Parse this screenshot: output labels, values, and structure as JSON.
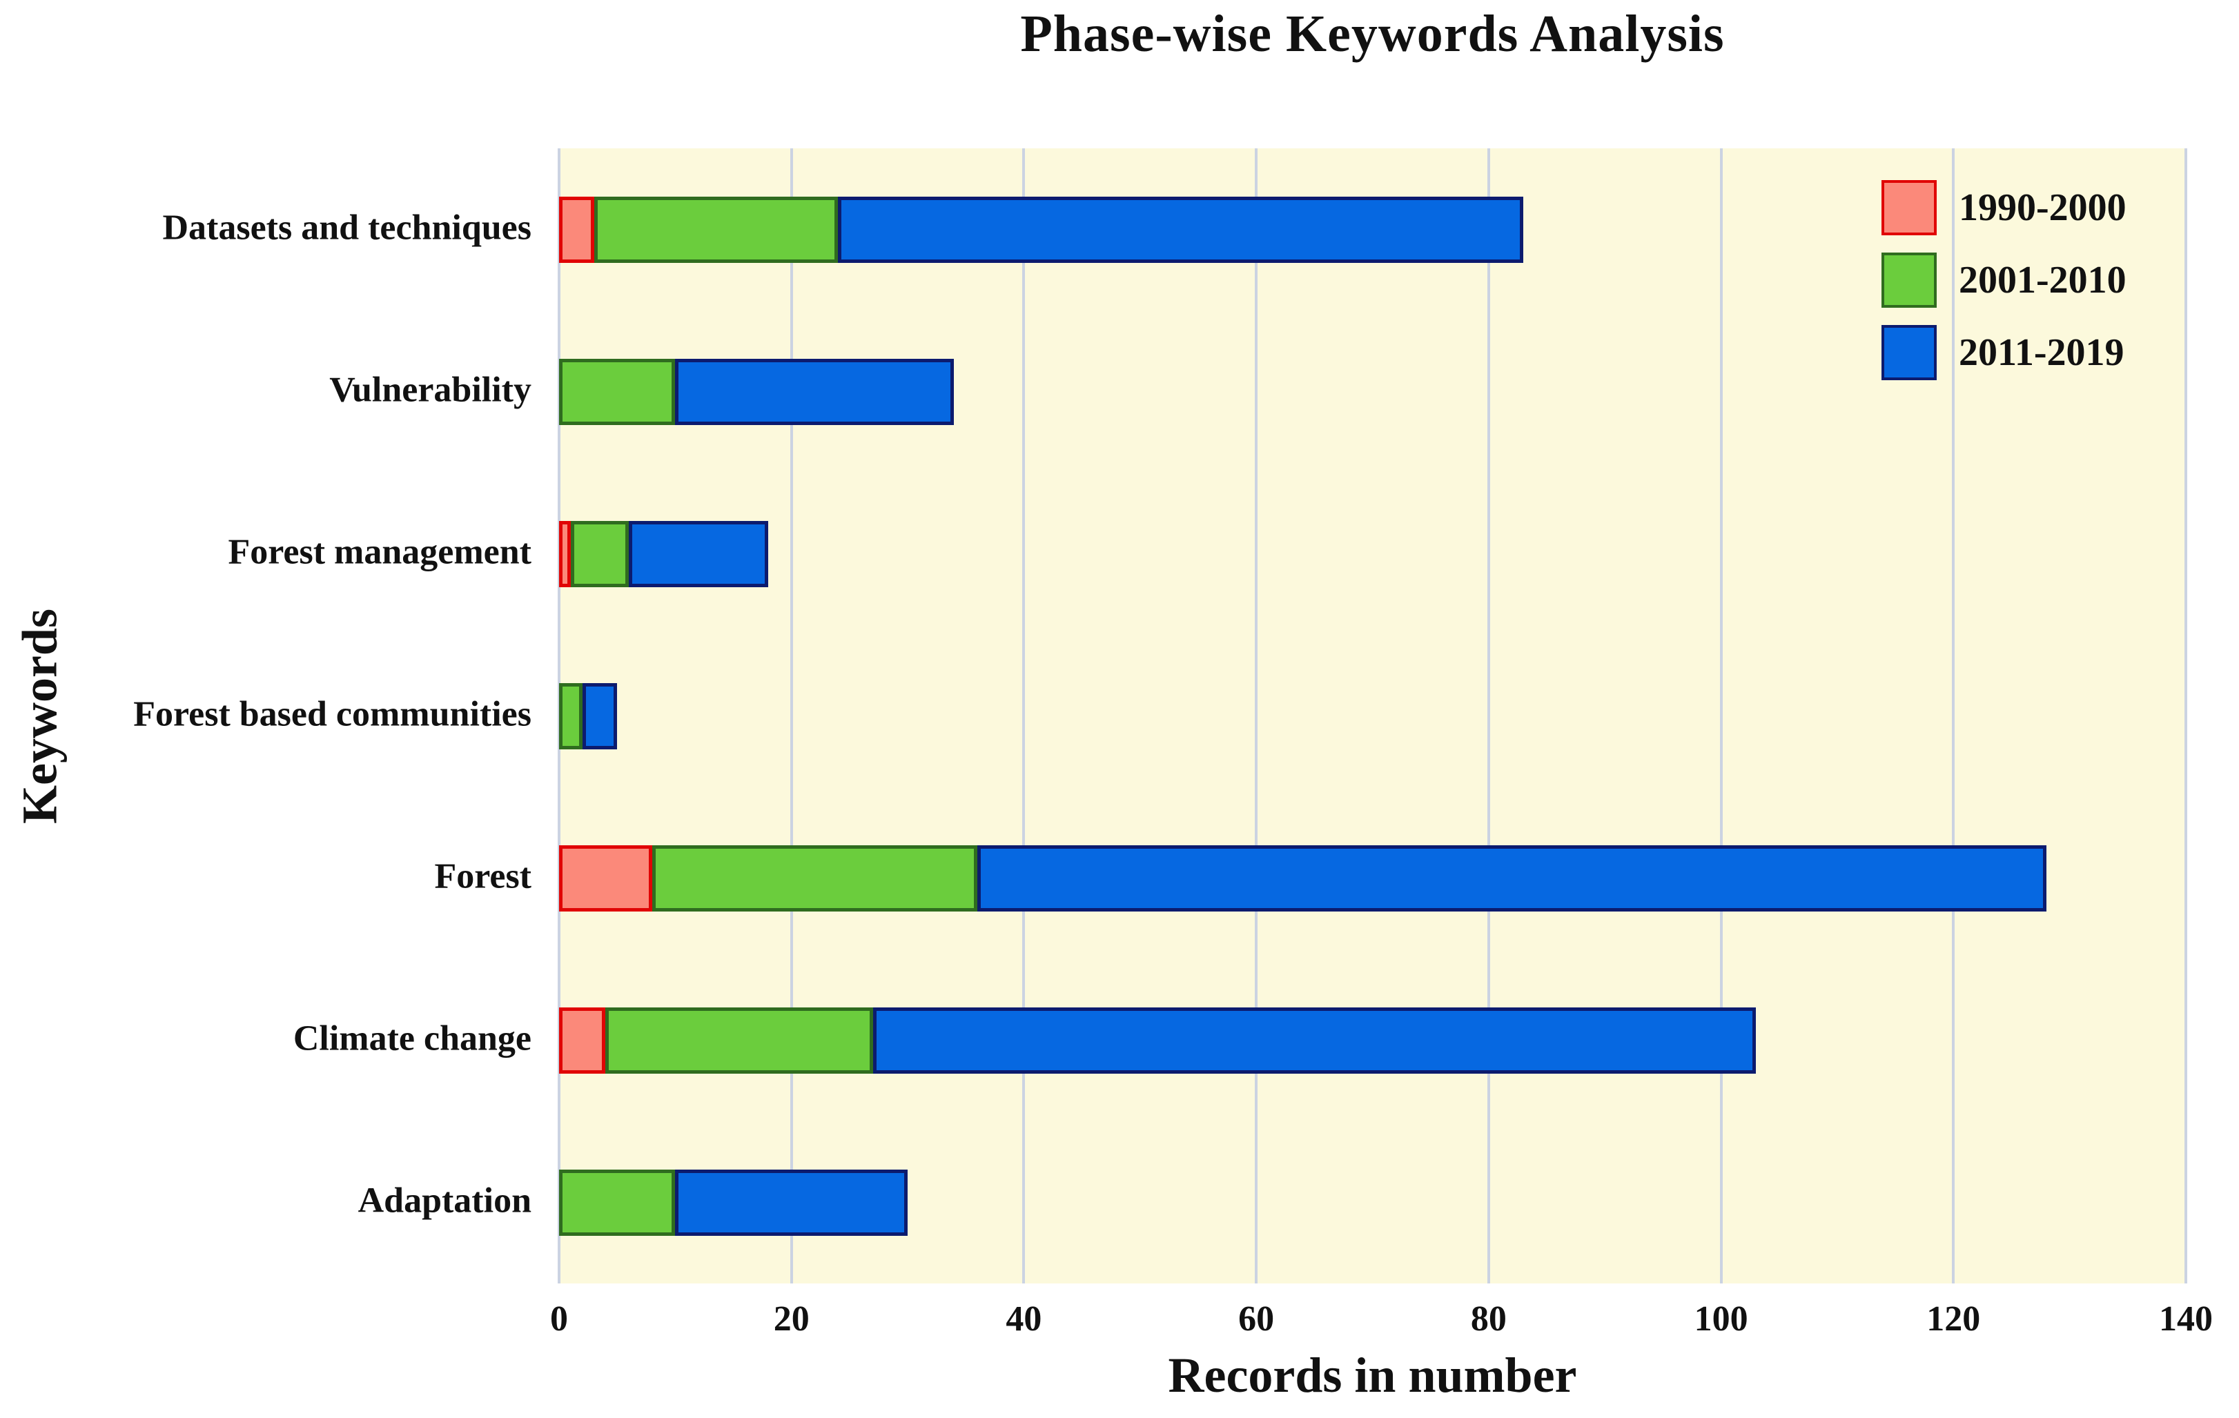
{
  "title": "Phase-wise Keywords Analysis",
  "chart_data": {
    "type": "bar",
    "orientation": "horizontal",
    "stacked": true,
    "title": "Phase-wise Keywords Analysis",
    "xlabel": "Records in number",
    "ylabel": "Keywords",
    "categories_top_to_bottom": [
      "Datasets and techniques",
      "Vulnerability",
      "Forest management",
      "Forest based communities",
      "Forest",
      "Climate change",
      "Adaptation"
    ],
    "series": [
      {
        "name": "1990-2000",
        "fill": "#FB897A",
        "border": "#E00505",
        "values": [
          3,
          0,
          1,
          0,
          8,
          4,
          0
        ]
      },
      {
        "name": "2001-2010",
        "fill": "#6BCD3D",
        "border": "#2F6C1F",
        "values": [
          21,
          10,
          5,
          2,
          28,
          23,
          10
        ]
      },
      {
        "name": "2011-2019",
        "fill": "#0668E1",
        "border": "#0C1B6E",
        "values": [
          59,
          24,
          12,
          3,
          92,
          76,
          20
        ]
      }
    ],
    "stack_totals": [
      83,
      34,
      18,
      5,
      128,
      103,
      30
    ],
    "xlim": [
      0,
      140
    ],
    "xticks": [
      0,
      20,
      40,
      60,
      80,
      100,
      120,
      140
    ],
    "grid": "vertical",
    "legend_position": "top-right-inside",
    "plot_bg": "#FCF9DC",
    "gridline_color": "#CBD3E2"
  }
}
